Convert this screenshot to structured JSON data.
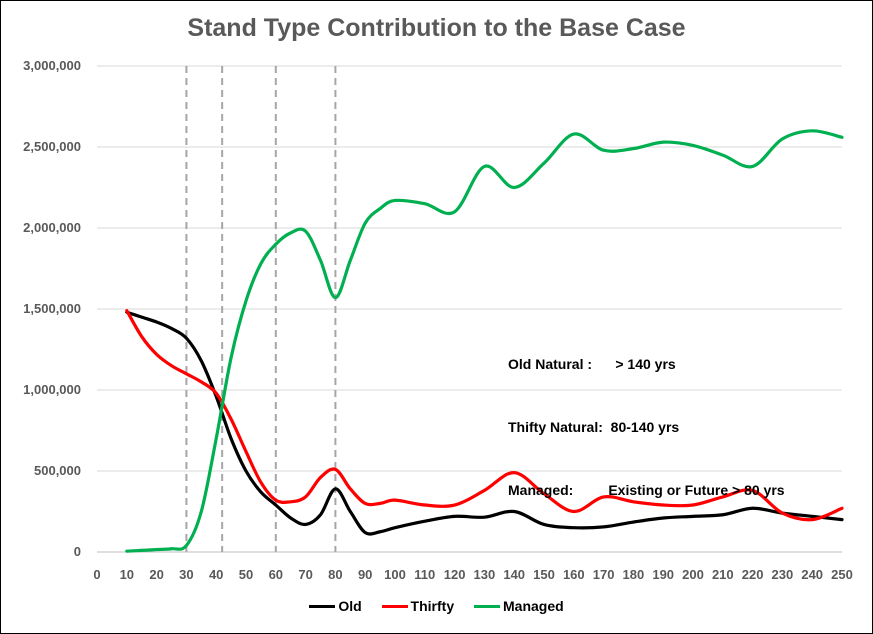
{
  "chart_data": {
    "type": "line",
    "title": "Stand Type Contribution to the Base Case",
    "xlabel": "",
    "ylabel": "",
    "xlim": [
      0,
      250
    ],
    "ylim": [
      0,
      3000000
    ],
    "x_ticks": [
      "0",
      "10",
      "20",
      "30",
      "40",
      "50",
      "60",
      "70",
      "80",
      "90",
      "100",
      "110",
      "120",
      "130",
      "140",
      "150",
      "160",
      "170",
      "180",
      "190",
      "200",
      "210",
      "220",
      "230",
      "240",
      "250"
    ],
    "y_ticks": [
      "0",
      "500,000",
      "1,000,000",
      "1,500,000",
      "2,000,000",
      "2,500,000",
      "3,000,000"
    ],
    "grid": "horizontal",
    "legend_position": "bottom",
    "vertical_markers": [
      30,
      42,
      60,
      80
    ],
    "annotation_lines": [
      "Old Natural :      > 140 yrs",
      "Thifty Natural:  80-140 yrs",
      "Managed:         Existing or Future > 80 yrs"
    ],
    "series": [
      {
        "name": "Old",
        "color": "#000000",
        "x": [
          10,
          15,
          20,
          25,
          30,
          35,
          40,
          45,
          50,
          55,
          60,
          65,
          70,
          75,
          80,
          85,
          90,
          95,
          100,
          110,
          120,
          130,
          140,
          150,
          160,
          170,
          180,
          190,
          200,
          210,
          220,
          230,
          240,
          250
        ],
        "values": [
          1480000,
          1450000,
          1420000,
          1380000,
          1320000,
          1180000,
          960000,
          700000,
          500000,
          370000,
          290000,
          210000,
          170000,
          230000,
          390000,
          250000,
          120000,
          125000,
          150000,
          190000,
          220000,
          215000,
          250000,
          170000,
          150000,
          155000,
          185000,
          210000,
          220000,
          230000,
          270000,
          240000,
          220000,
          200000
        ]
      },
      {
        "name": "Thirfty",
        "color": "#ff0000",
        "x": [
          10,
          15,
          20,
          25,
          30,
          35,
          40,
          45,
          50,
          55,
          60,
          65,
          70,
          75,
          80,
          85,
          90,
          95,
          100,
          110,
          120,
          130,
          140,
          150,
          160,
          170,
          180,
          190,
          200,
          210,
          220,
          230,
          240,
          250
        ],
        "values": [
          1490000,
          1330000,
          1220000,
          1150000,
          1100000,
          1050000,
          980000,
          820000,
          620000,
          430000,
          320000,
          310000,
          340000,
          460000,
          510000,
          390000,
          300000,
          300000,
          320000,
          290000,
          290000,
          380000,
          490000,
          360000,
          250000,
          340000,
          310000,
          290000,
          290000,
          340000,
          380000,
          240000,
          200000,
          270000
        ]
      },
      {
        "name": "Managed",
        "color": "#00b050",
        "x": [
          10,
          15,
          20,
          25,
          30,
          35,
          40,
          45,
          50,
          55,
          60,
          65,
          70,
          75,
          80,
          85,
          90,
          95,
          100,
          110,
          120,
          130,
          140,
          150,
          160,
          170,
          180,
          190,
          200,
          210,
          220,
          230,
          240,
          250
        ],
        "values": [
          5000,
          10000,
          15000,
          20000,
          40000,
          250000,
          700000,
          1200000,
          1550000,
          1780000,
          1900000,
          1970000,
          1980000,
          1800000,
          1570000,
          1800000,
          2030000,
          2120000,
          2170000,
          2150000,
          2100000,
          2380000,
          2250000,
          2400000,
          2580000,
          2480000,
          2490000,
          2530000,
          2510000,
          2450000,
          2380000,
          2550000,
          2600000,
          2560000
        ]
      }
    ]
  }
}
